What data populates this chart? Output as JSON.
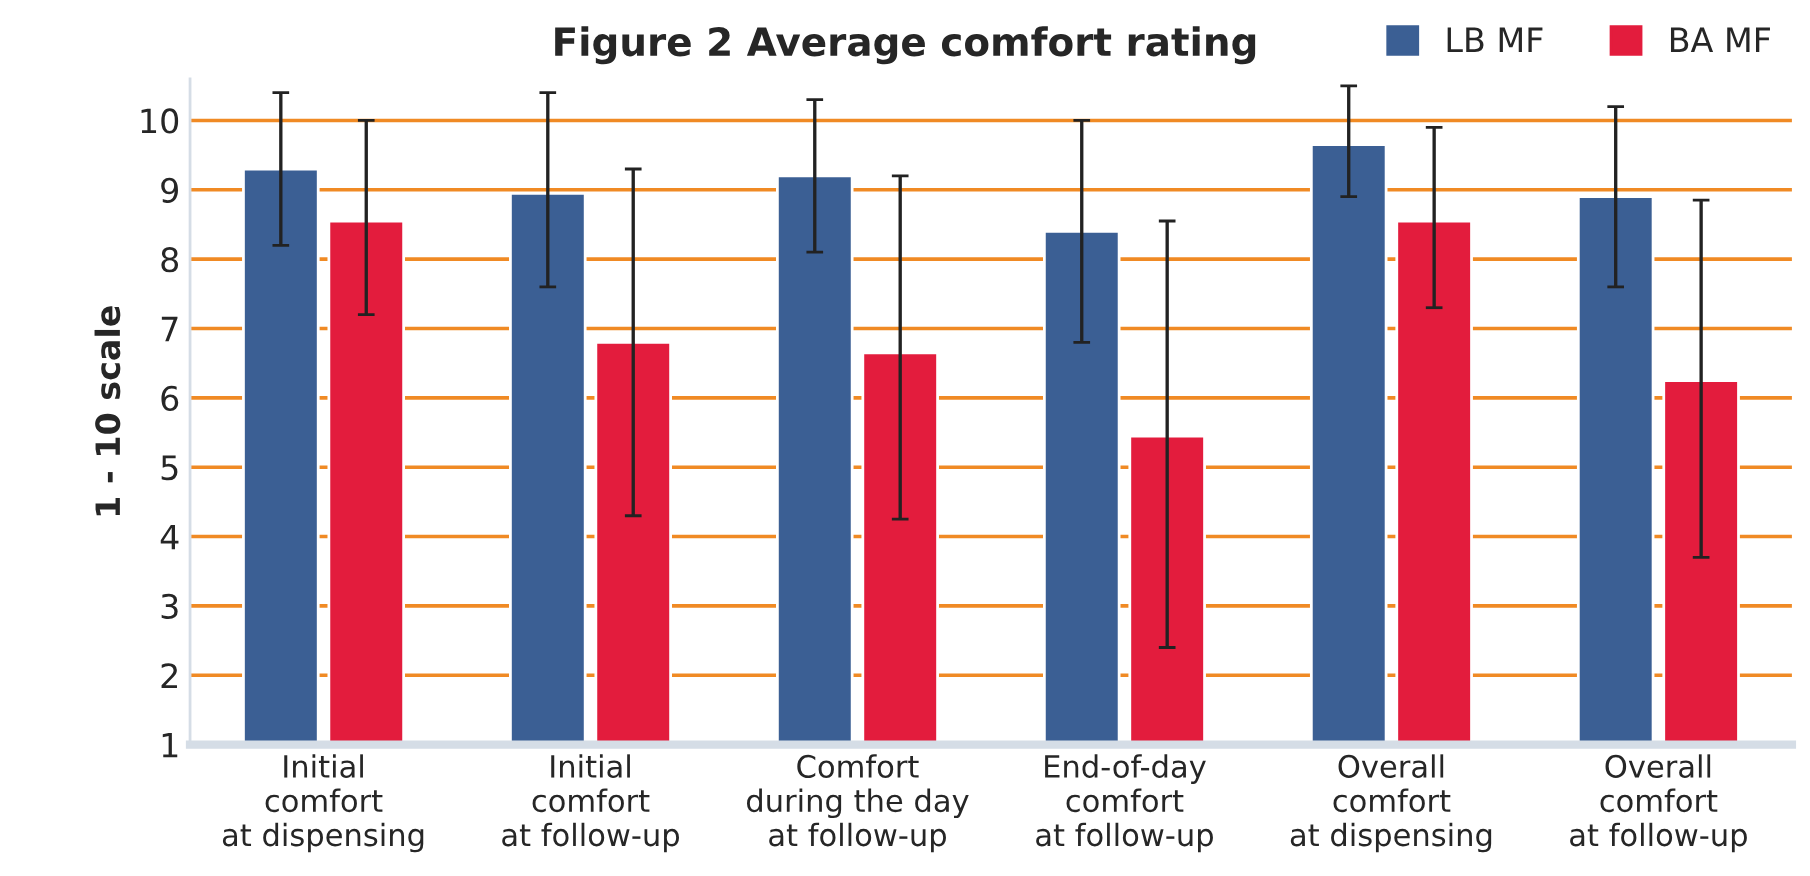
{
  "chart_data": {
    "type": "bar",
    "title": "Figure 2 Average comfort rating",
    "ylabel": "1 - 10 scale",
    "categories": [
      "Initial\ncomfort\nat dispensing",
      "Initial\ncomfort\nat follow-up",
      "Comfort\nduring the day\nat follow-up",
      "End-of-day\ncomfort\nat follow-up",
      "Overall\ncomfort\nat dispensing",
      "Overall\ncomfort\nat follow-up"
    ],
    "series": [
      {
        "name": "LB MF",
        "color": "#3b5f94",
        "values": [
          9.3,
          8.95,
          9.2,
          8.4,
          9.65,
          8.9
        ],
        "errors": [
          [
            8.2,
            10.4
          ],
          [
            7.6,
            10.4
          ],
          [
            8.1,
            10.3
          ],
          [
            6.8,
            10.0
          ],
          [
            8.9,
            10.5
          ],
          [
            7.6,
            10.2
          ]
        ]
      },
      {
        "name": "BA MF",
        "color": "#e31c3d",
        "values": [
          8.55,
          6.8,
          6.65,
          5.45,
          8.55,
          6.25
        ],
        "errors": [
          [
            7.2,
            10.0
          ],
          [
            4.3,
            9.3
          ],
          [
            4.25,
            9.2
          ],
          [
            2.4,
            8.55
          ],
          [
            7.3,
            9.9
          ],
          [
            3.7,
            8.85
          ]
        ]
      }
    ],
    "ylim": [
      1,
      10.6
    ],
    "yticks": [
      1,
      2,
      3,
      4,
      5,
      6,
      7,
      8,
      9,
      10
    ],
    "grid": "y",
    "legend": "top right"
  }
}
